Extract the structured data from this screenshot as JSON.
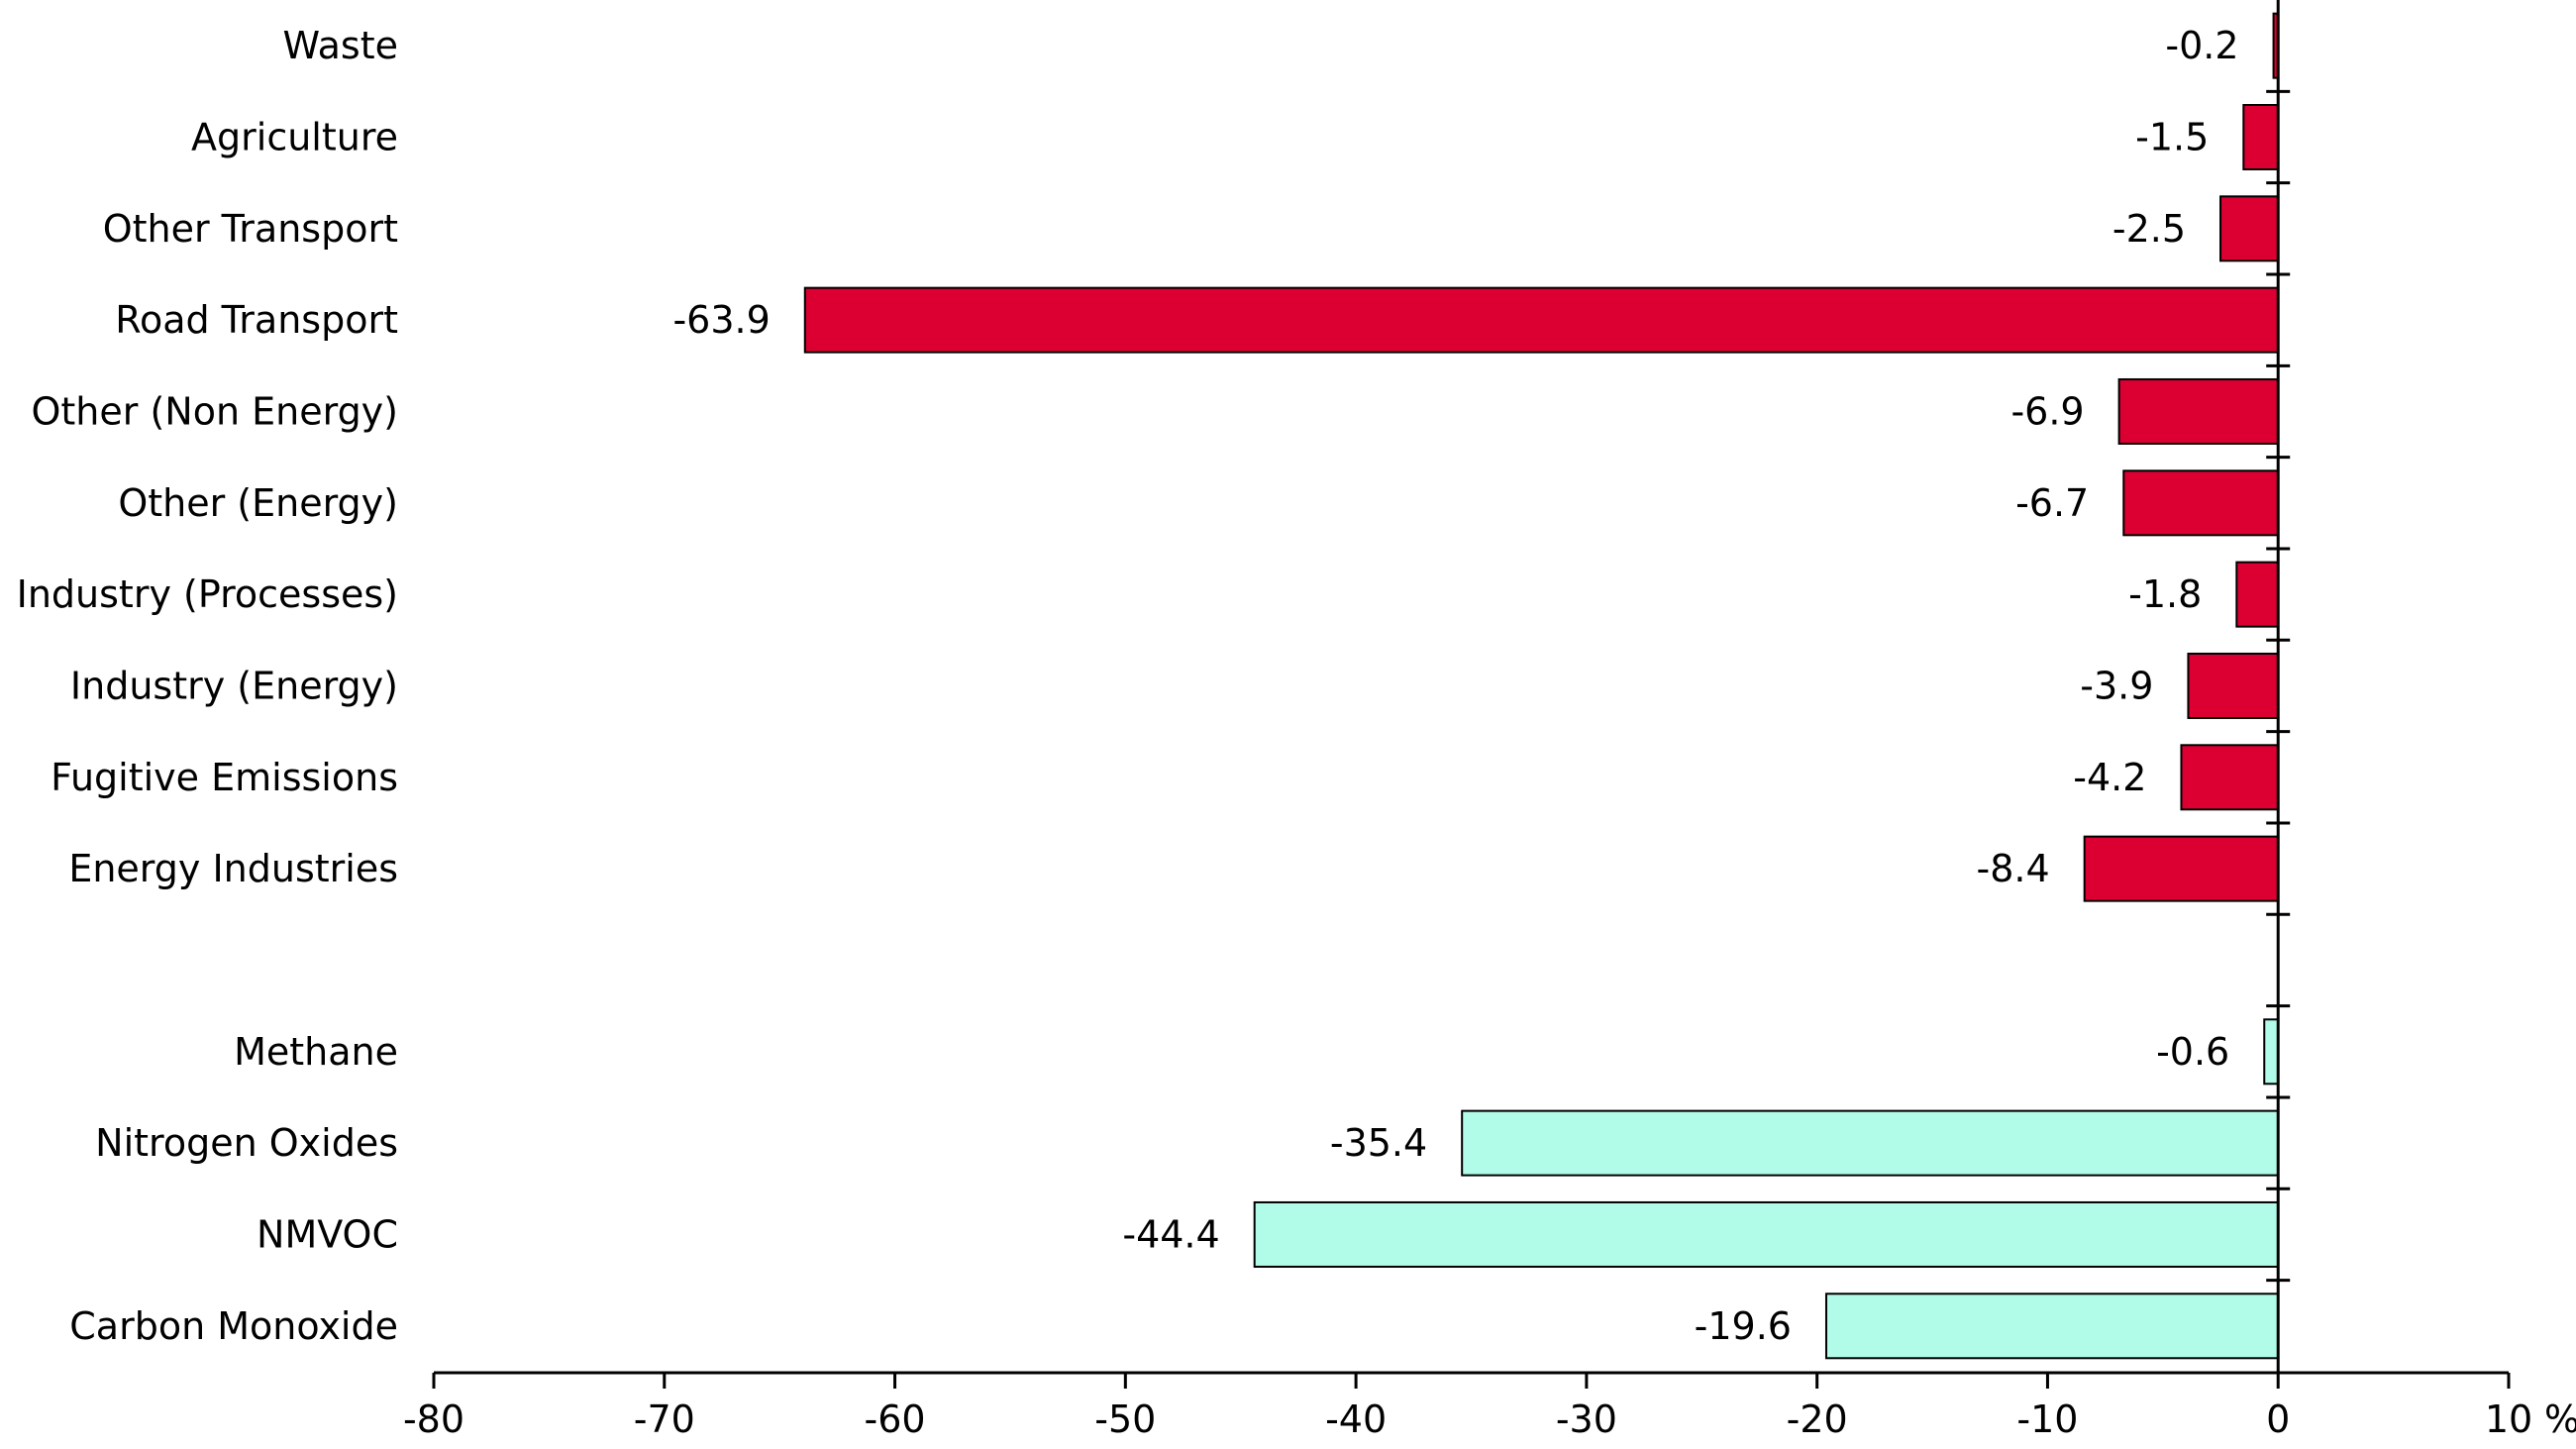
{
  "chart_data": {
    "type": "bar",
    "orientation": "horizontal",
    "categories": [
      "Waste",
      "Agriculture",
      "Other Transport",
      "Road Transport",
      "Other (Non Energy)",
      "Other (Energy)",
      "Industry (Processes)",
      "Industry (Energy)",
      "Fugitive Emissions",
      "Energy Industries",
      "",
      "Methane",
      "Nitrogen Oxides",
      "NMVOC",
      "Carbon Monoxide"
    ],
    "values": [
      -0.2,
      -1.5,
      -2.5,
      -63.9,
      -6.9,
      -6.7,
      -1.8,
      -3.9,
      -4.2,
      -8.4,
      null,
      -0.6,
      -35.4,
      -44.4,
      -19.6
    ],
    "value_labels": [
      "-0.2",
      "-1.5",
      "-2.5",
      "-63.9",
      "-6.9",
      "-6.7",
      "-1.8",
      "-3.9",
      "-4.2",
      "-8.4",
      "",
      "-0.6",
      "-35.4",
      "-44.4",
      "-19.6"
    ],
    "groups": [
      "sector",
      "sector",
      "sector",
      "sector",
      "sector",
      "sector",
      "sector",
      "sector",
      "sector",
      "sector",
      "gap",
      "pollutant",
      "pollutant",
      "pollutant",
      "pollutant"
    ],
    "group_colors": {
      "sector": "#dc0032",
      "pollutant": "#b1fce8"
    },
    "bar_border_color": "#000000",
    "xlim": [
      -80,
      10
    ],
    "xticks": [
      -80,
      -70,
      -60,
      -50,
      -40,
      -30,
      -20,
      -10,
      0,
      10
    ],
    "xtick_labels": [
      "-80",
      "-70",
      "-60",
      "-50",
      "-40",
      "-30",
      "-20",
      "-10",
      "0",
      "10"
    ],
    "x_unit": "%",
    "title": "",
    "xlabel": "",
    "ylabel": "",
    "grid": false,
    "legend": "none"
  }
}
